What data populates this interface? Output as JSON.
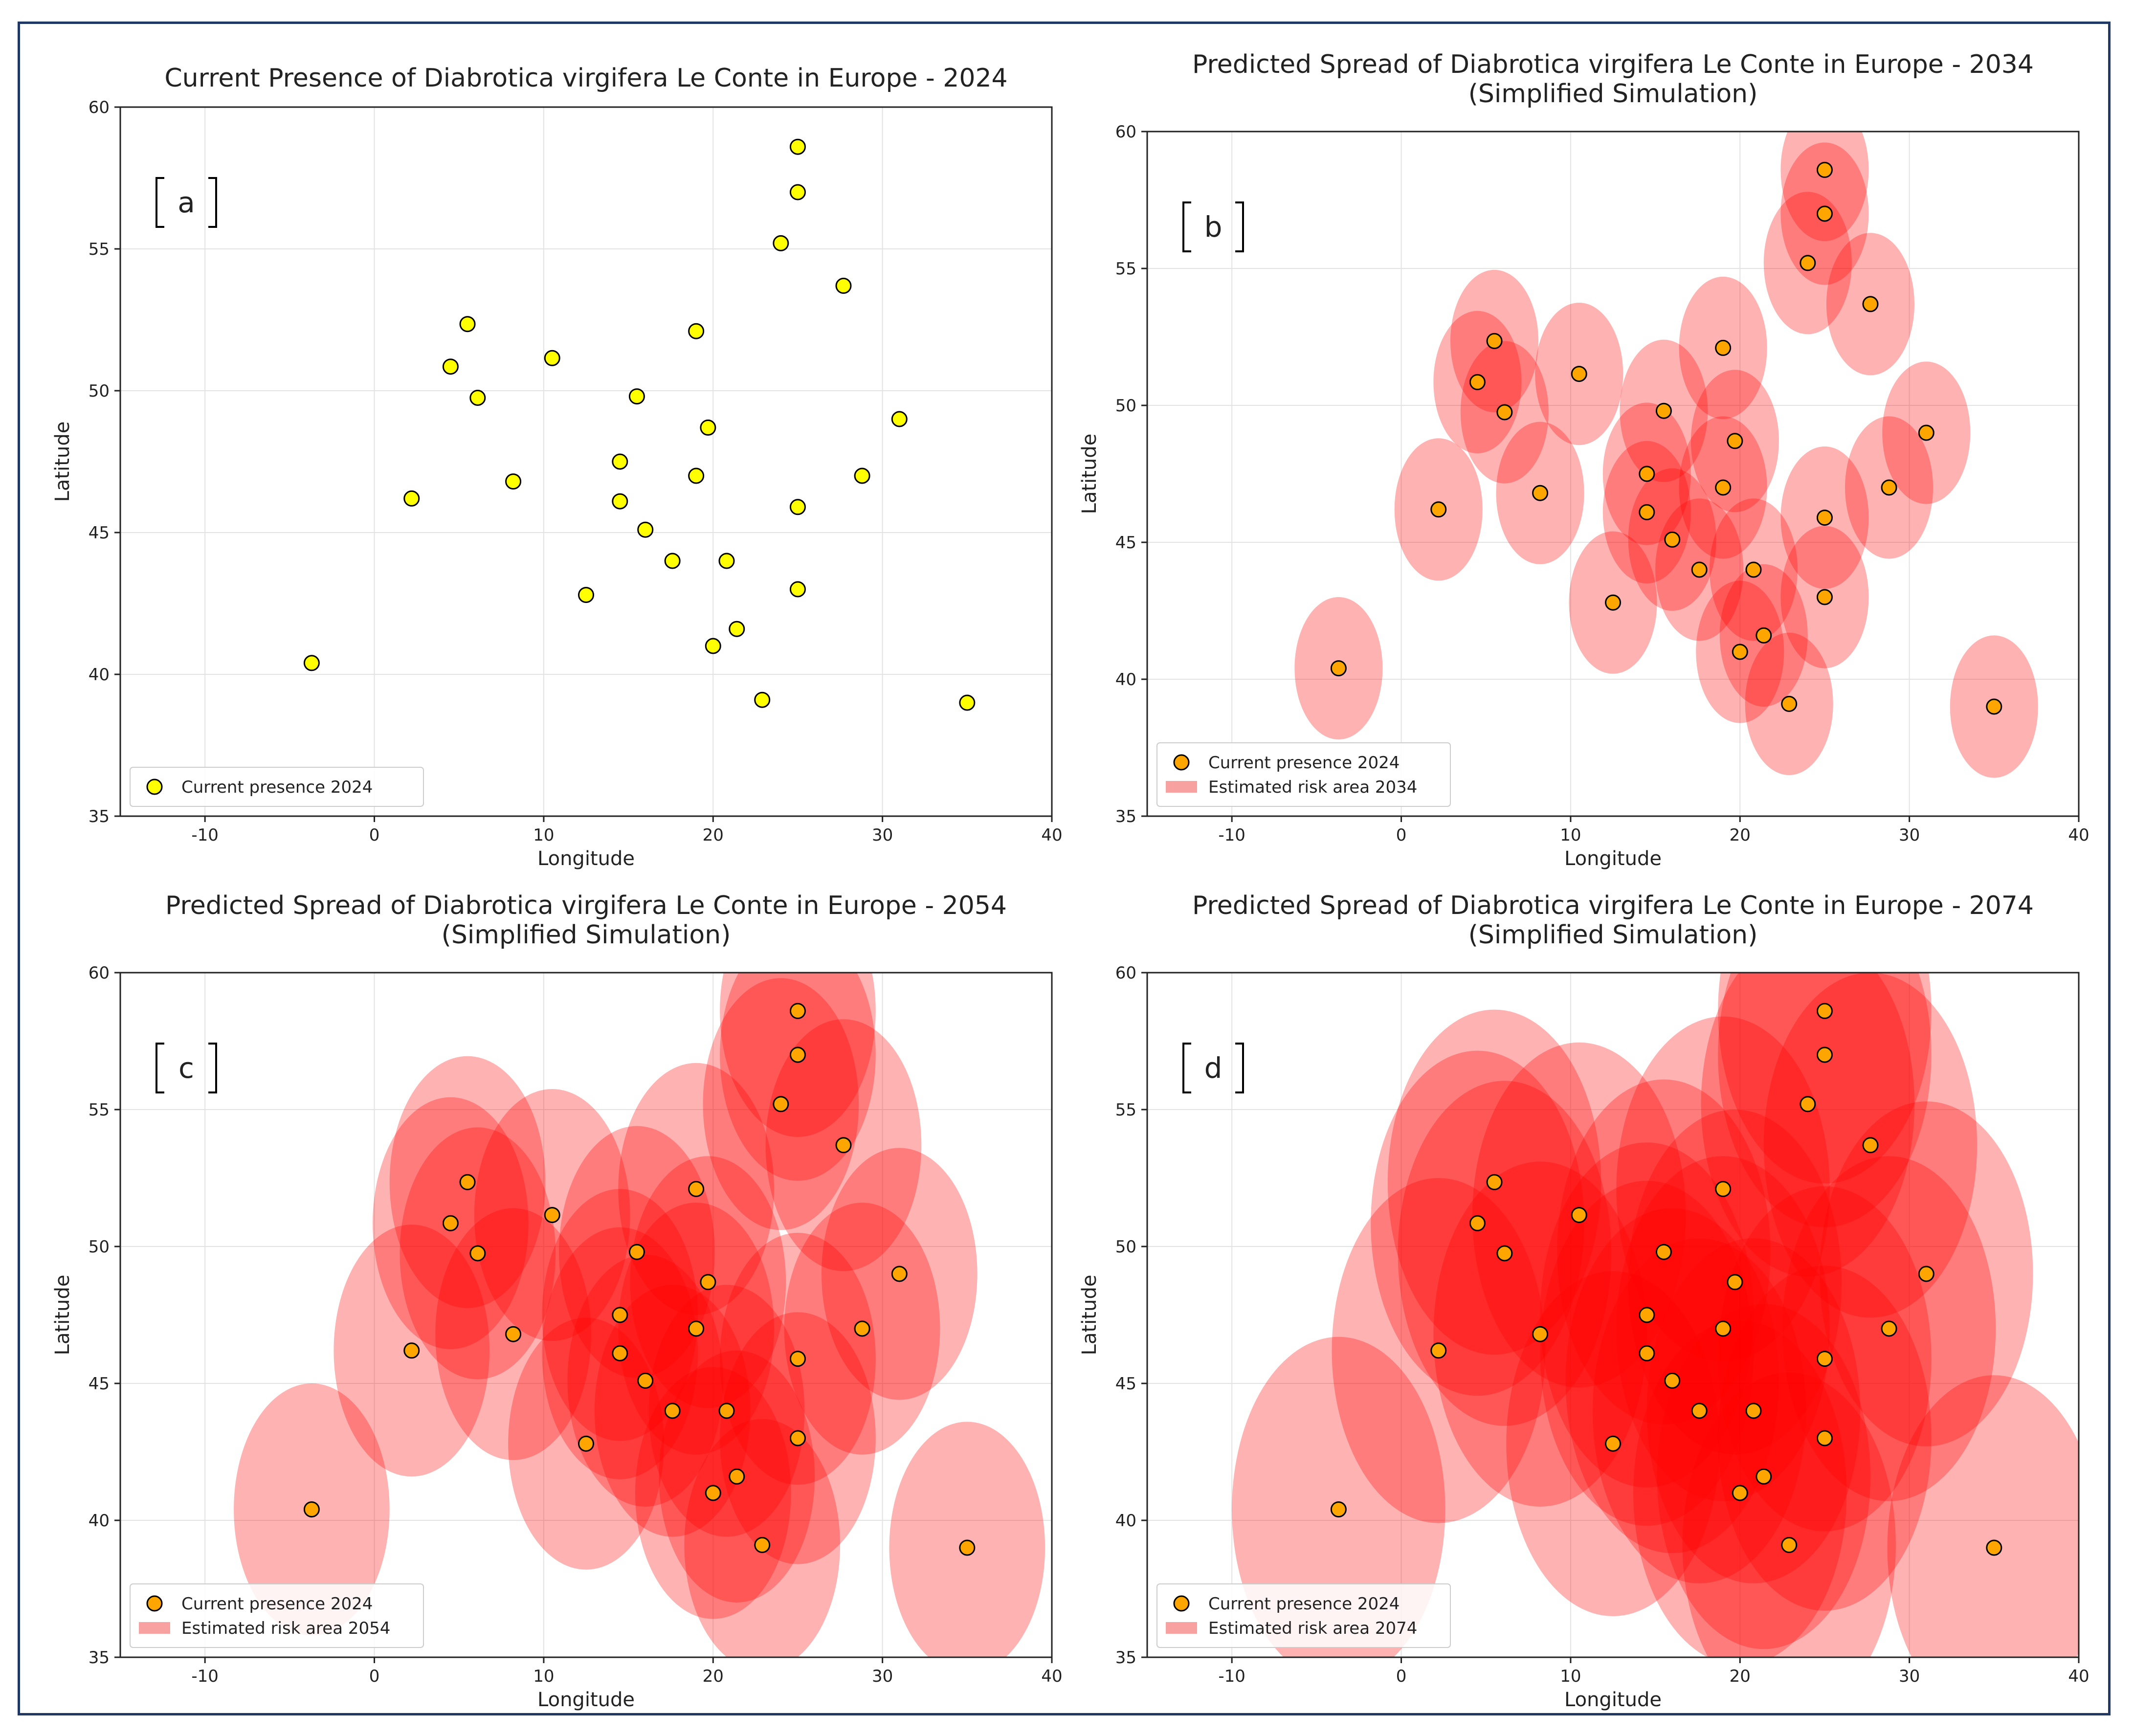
{
  "figure": {
    "border_color": "#1f3864"
  },
  "colors": {
    "point_yellow": "#ffff00",
    "point_orange": "#ffa500",
    "point_edge": "#000000",
    "risk_fill": "#ff0000",
    "risk_legend_fill": "#f7a1a1",
    "grid": "#e3e3e3",
    "axis": "#222222"
  },
  "chart_data": [
    {
      "type": "scatter",
      "panel_label": "a",
      "title": "Current Presence of Diabrotica virgifera Le Conte in Europe - 2024",
      "subtitle": "",
      "xlabel": "Longitude",
      "ylabel": "Latitude",
      "xlim": [
        -15,
        40
      ],
      "ylim": [
        35,
        60
      ],
      "xticks": [
        -10,
        0,
        10,
        20,
        30,
        40
      ],
      "yticks": [
        35,
        40,
        45,
        50,
        55,
        60
      ],
      "grid": true,
      "legend_position": "bottom-left",
      "legend": [
        {
          "kind": "point",
          "label": "Current presence 2024"
        }
      ],
      "point_color": "yellow",
      "risk_radius": null
    },
    {
      "type": "scatter",
      "panel_label": "b",
      "title": "Predicted Spread of Diabrotica virgifera Le Conte in Europe - 2034",
      "subtitle": "(Simplified Simulation)",
      "xlabel": "Longitude",
      "ylabel": "Latitude",
      "xlim": [
        -15,
        40
      ],
      "ylim": [
        35,
        60
      ],
      "xticks": [
        -10,
        0,
        10,
        20,
        30,
        40
      ],
      "yticks": [
        35,
        40,
        45,
        50,
        55,
        60
      ],
      "grid": true,
      "legend_position": "bottom-left",
      "legend": [
        {
          "kind": "point",
          "label": "Current presence 2024"
        },
        {
          "kind": "area",
          "label": "Estimated risk area 2034"
        }
      ],
      "point_color": "orange",
      "risk_radius": 2.6,
      "risk_alpha": 0.3
    },
    {
      "type": "scatter",
      "panel_label": "c",
      "title": "Predicted Spread of Diabrotica virgifera Le Conte in Europe - 2054",
      "subtitle": "(Simplified Simulation)",
      "xlabel": "Longitude",
      "ylabel": "Latitude",
      "xlim": [
        -15,
        40
      ],
      "ylim": [
        35,
        60
      ],
      "xticks": [
        -10,
        0,
        10,
        20,
        30,
        40
      ],
      "yticks": [
        35,
        40,
        45,
        50,
        55,
        60
      ],
      "grid": true,
      "legend_position": "bottom-left",
      "legend": [
        {
          "kind": "point",
          "label": "Current presence 2024"
        },
        {
          "kind": "area",
          "label": "Estimated risk area 2054"
        }
      ],
      "point_color": "orange",
      "risk_radius": 4.6,
      "risk_alpha": 0.3
    },
    {
      "type": "scatter",
      "panel_label": "d",
      "title": "Predicted Spread of Diabrotica virgifera Le Conte in Europe - 2074",
      "subtitle": "(Simplified Simulation)",
      "xlabel": "Longitude",
      "ylabel": "Latitude",
      "xlim": [
        -15,
        40
      ],
      "ylim": [
        35,
        60
      ],
      "xticks": [
        -10,
        0,
        10,
        20,
        30,
        40
      ],
      "yticks": [
        35,
        40,
        45,
        50,
        55,
        60
      ],
      "grid": true,
      "legend_position": "bottom-left",
      "legend": [
        {
          "kind": "point",
          "label": "Current presence 2024"
        },
        {
          "kind": "area",
          "label": "Estimated risk area 2074"
        }
      ],
      "point_color": "orange",
      "risk_radius": 6.3,
      "risk_alpha": 0.3
    }
  ],
  "points": [
    {
      "lon": -3.7,
      "lat": 40.4
    },
    {
      "lon": 2.2,
      "lat": 46.2
    },
    {
      "lon": 4.5,
      "lat": 50.85
    },
    {
      "lon": 5.5,
      "lat": 52.35
    },
    {
      "lon": 6.1,
      "lat": 49.75
    },
    {
      "lon": 8.2,
      "lat": 46.8
    },
    {
      "lon": 10.5,
      "lat": 51.15
    },
    {
      "lon": 12.5,
      "lat": 42.8
    },
    {
      "lon": 14.5,
      "lat": 47.5
    },
    {
      "lon": 14.5,
      "lat": 46.1
    },
    {
      "lon": 15.5,
      "lat": 49.8
    },
    {
      "lon": 16.0,
      "lat": 45.1
    },
    {
      "lon": 17.6,
      "lat": 44.0
    },
    {
      "lon": 19.0,
      "lat": 52.1
    },
    {
      "lon": 19.7,
      "lat": 48.7
    },
    {
      "lon": 19.0,
      "lat": 47.0
    },
    {
      "lon": 20.0,
      "lat": 41.0
    },
    {
      "lon": 20.8,
      "lat": 44.0
    },
    {
      "lon": 21.4,
      "lat": 41.6
    },
    {
      "lon": 22.9,
      "lat": 39.1
    },
    {
      "lon": 24.0,
      "lat": 55.2
    },
    {
      "lon": 25.0,
      "lat": 58.6
    },
    {
      "lon": 25.0,
      "lat": 57.0
    },
    {
      "lon": 25.0,
      "lat": 45.9
    },
    {
      "lon": 25.0,
      "lat": 43.0
    },
    {
      "lon": 27.7,
      "lat": 53.7
    },
    {
      "lon": 28.8,
      "lat": 47.0
    },
    {
      "lon": 31.0,
      "lat": 49.0
    },
    {
      "lon": 35.0,
      "lat": 39.0
    }
  ]
}
